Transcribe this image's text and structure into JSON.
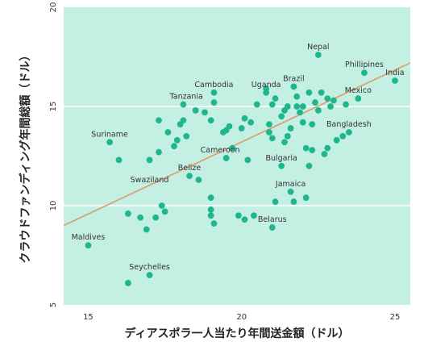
{
  "chart_data": {
    "type": "scatter",
    "xlabel": "ディアスポラ一人当たり年間送金額（ドル）",
    "ylabel": "クラウドファンディング年間総額（ドル）",
    "xlim": [
      14.2,
      25.5
    ],
    "ylim": [
      5,
      20
    ],
    "x_ticks": [
      15,
      20,
      25
    ],
    "y_ticks": [
      5,
      10,
      15,
      20
    ],
    "grid": "horizontal",
    "colors": {
      "background": "#c4efe3",
      "grid": "#ffffff",
      "point": "#1fb68c",
      "trend": "#d9a374"
    },
    "trend_line": {
      "x": [
        14.2,
        25.5
      ],
      "y": [
        9.0,
        17.2
      ]
    },
    "labels": [
      {
        "text": "Nepal",
        "x": 22.5,
        "y": 17.6
      },
      {
        "text": "Phillipines",
        "x": 24.0,
        "y": 16.7
      },
      {
        "text": "India",
        "x": 25.0,
        "y": 16.3
      },
      {
        "text": "Brazil",
        "x": 21.7,
        "y": 16.0
      },
      {
        "text": "Uganda",
        "x": 20.8,
        "y": 15.7
      },
      {
        "text": "Cambodia",
        "x": 19.1,
        "y": 15.7
      },
      {
        "text": "Mexico",
        "x": 23.8,
        "y": 15.4
      },
      {
        "text": "Tanzania",
        "x": 18.2,
        "y": 15.1
      },
      {
        "text": "Bangladesh",
        "x": 23.5,
        "y": 13.7
      },
      {
        "text": "Suriname",
        "x": 15.7,
        "y": 13.2
      },
      {
        "text": "Cameroon",
        "x": 19.3,
        "y": 12.4
      },
      {
        "text": "Bulgaria",
        "x": 21.3,
        "y": 12.0
      },
      {
        "text": "Belize",
        "x": 18.3,
        "y": 11.5
      },
      {
        "text": "Swaziland",
        "x": 17.0,
        "y": 10.9
      },
      {
        "text": "Jamaica",
        "x": 21.6,
        "y": 10.7
      },
      {
        "text": "Belarus",
        "x": 21.0,
        "y": 8.9
      },
      {
        "text": "Maldives",
        "x": 15.0,
        "y": 8.0
      },
      {
        "text": "Seychelles",
        "x": 17.0,
        "y": 6.5
      }
    ],
    "points": [
      [
        15.0,
        8.0
      ],
      [
        15.7,
        13.2
      ],
      [
        16.0,
        12.3
      ],
      [
        16.3,
        6.1
      ],
      [
        16.3,
        9.6
      ],
      [
        16.7,
        9.4
      ],
      [
        16.9,
        8.8
      ],
      [
        17.0,
        6.5
      ],
      [
        17.0,
        12.3
      ],
      [
        17.2,
        9.4
      ],
      [
        17.3,
        14.3
      ],
      [
        17.3,
        12.7
      ],
      [
        17.4,
        10.0
      ],
      [
        17.5,
        9.7
      ],
      [
        17.6,
        13.7
      ],
      [
        17.8,
        13.0
      ],
      [
        17.9,
        13.3
      ],
      [
        18.0,
        14.1
      ],
      [
        18.1,
        14.3
      ],
      [
        18.1,
        15.1
      ],
      [
        18.2,
        13.5
      ],
      [
        18.3,
        11.5
      ],
      [
        18.5,
        14.8
      ],
      [
        18.6,
        11.3
      ],
      [
        18.8,
        14.7
      ],
      [
        19.0,
        14.3
      ],
      [
        19.1,
        15.7
      ],
      [
        19.1,
        15.2
      ],
      [
        19.4,
        13.7
      ],
      [
        19.5,
        12.4
      ],
      [
        19.5,
        13.8
      ],
      [
        19.6,
        14.0
      ],
      [
        19.7,
        12.9
      ],
      [
        19.9,
        9.5
      ],
      [
        20.0,
        13.9
      ],
      [
        20.1,
        9.3
      ],
      [
        20.1,
        14.4
      ],
      [
        20.2,
        12.3
      ],
      [
        20.3,
        14.2
      ],
      [
        20.4,
        9.5
      ],
      [
        20.5,
        15.1
      ],
      [
        20.8,
        15.9
      ],
      [
        20.8,
        15.7
      ],
      [
        20.9,
        14.1
      ],
      [
        20.9,
        13.7
      ],
      [
        21.0,
        15.1
      ],
      [
        21.0,
        13.4
      ],
      [
        21.0,
        8.9
      ],
      [
        21.1,
        15.4
      ],
      [
        21.1,
        10.2
      ],
      [
        21.3,
        14.5
      ],
      [
        21.3,
        12.0
      ],
      [
        21.4,
        14.8
      ],
      [
        21.4,
        13.2
      ],
      [
        21.5,
        15.0
      ],
      [
        21.5,
        13.5
      ],
      [
        21.6,
        13.9
      ],
      [
        21.6,
        10.7
      ],
      [
        21.7,
        10.2
      ],
      [
        21.7,
        16.0
      ],
      [
        21.8,
        15.5
      ],
      [
        21.8,
        15.0
      ],
      [
        21.9,
        14.7
      ],
      [
        22.0,
        14.2
      ],
      [
        22.0,
        15.0
      ],
      [
        22.1,
        12.9
      ],
      [
        22.1,
        10.4
      ],
      [
        22.2,
        15.7
      ],
      [
        22.2,
        12.0
      ],
      [
        22.3,
        14.1
      ],
      [
        22.3,
        12.8
      ],
      [
        22.4,
        15.2
      ],
      [
        22.5,
        17.6
      ],
      [
        22.5,
        14.8
      ],
      [
        22.6,
        15.7
      ],
      [
        22.7,
        12.6
      ],
      [
        22.8,
        15.4
      ],
      [
        22.8,
        12.9
      ],
      [
        22.9,
        15.0
      ],
      [
        23.0,
        15.3
      ],
      [
        23.1,
        13.3
      ],
      [
        23.3,
        13.5
      ],
      [
        23.4,
        15.1
      ],
      [
        23.5,
        13.7
      ],
      [
        23.8,
        15.4
      ],
      [
        24.0,
        16.7
      ],
      [
        25.0,
        16.3
      ],
      [
        19.0,
        10.4
      ],
      [
        19.0,
        9.8
      ],
      [
        19.1,
        9.1
      ],
      [
        19.0,
        9.5
      ]
    ]
  }
}
